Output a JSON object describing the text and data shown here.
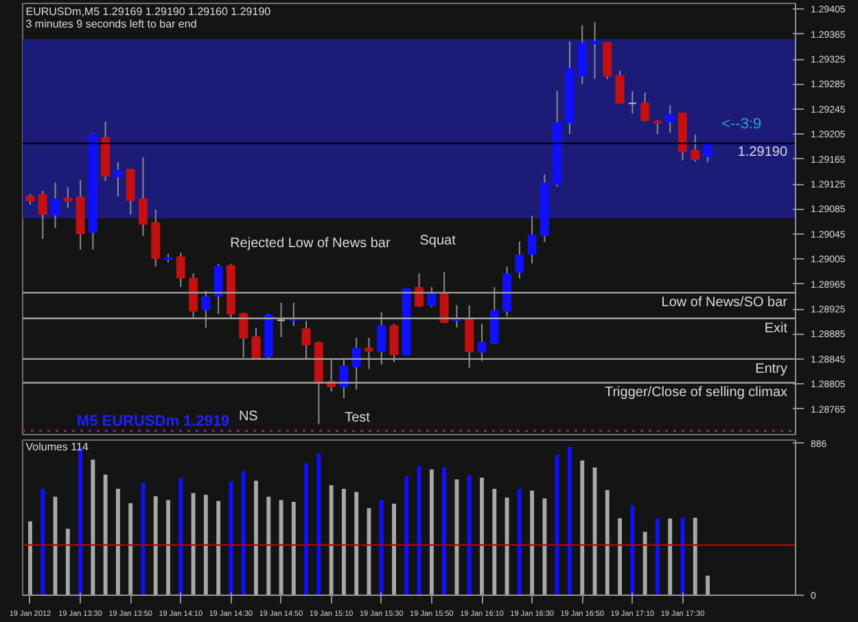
{
  "chart_data": [
    {
      "type": "candlestick",
      "title": "EURUSDm,M5  1.29169 1.29190 1.29160 1.29190",
      "subtitle": "3 minutes 9 seconds left to bar end",
      "x": [
        "2012-01-19T13:10",
        "2012-01-19T13:15",
        "2012-01-19T13:20",
        "2012-01-19T13:25",
        "2012-01-19T13:30",
        "2012-01-19T13:35",
        "2012-01-19T13:40",
        "2012-01-19T13:45",
        "2012-01-19T13:50",
        "2012-01-19T13:55",
        "2012-01-19T14:00",
        "2012-01-19T14:05",
        "2012-01-19T14:10",
        "2012-01-19T14:15",
        "2012-01-19T14:20",
        "2012-01-19T14:25",
        "2012-01-19T14:30",
        "2012-01-19T14:35",
        "2012-01-19T14:40",
        "2012-01-19T14:45",
        "2012-01-19T14:50",
        "2012-01-19T14:55",
        "2012-01-19T15:00",
        "2012-01-19T15:05",
        "2012-01-19T15:10",
        "2012-01-19T15:15",
        "2012-01-19T15:20",
        "2012-01-19T15:25",
        "2012-01-19T15:30",
        "2012-01-19T15:35",
        "2012-01-19T15:40",
        "2012-01-19T15:45",
        "2012-01-19T15:50",
        "2012-01-19T15:55",
        "2012-01-19T16:00",
        "2012-01-19T16:05",
        "2012-01-19T16:10",
        "2012-01-19T16:15",
        "2012-01-19T16:20",
        "2012-01-19T16:25",
        "2012-01-19T16:30",
        "2012-01-19T16:35",
        "2012-01-19T16:40",
        "2012-01-19T16:45",
        "2012-01-19T16:50",
        "2012-01-19T16:55",
        "2012-01-19T17:00",
        "2012-01-19T17:05",
        "2012-01-19T17:10",
        "2012-01-19T17:15",
        "2012-01-19T17:20",
        "2012-01-19T17:25",
        "2012-01-19T17:30",
        "2012-01-19T17:35",
        "2012-01-19T17:40"
      ],
      "ohlc": [
        [
          1.29105,
          1.29109,
          1.29092,
          1.29098
        ],
        [
          1.29108,
          1.29114,
          1.29037,
          1.29077
        ],
        [
          1.29076,
          1.29127,
          1.29055,
          1.29101
        ],
        [
          1.29102,
          1.2912,
          1.29087,
          1.29098
        ],
        [
          1.29104,
          1.29131,
          1.2902,
          1.29046
        ],
        [
          1.29048,
          1.29206,
          1.2902,
          1.29204
        ],
        [
          1.29199,
          1.29225,
          1.2913,
          1.29138
        ],
        [
          1.29137,
          1.2916,
          1.29105,
          1.29147
        ],
        [
          1.29148,
          1.29149,
          1.29076,
          1.29099
        ],
        [
          1.29101,
          1.29168,
          1.29042,
          1.29061
        ],
        [
          1.29063,
          1.29084,
          1.28993,
          1.29006
        ],
        [
          1.29005,
          1.29013,
          1.29,
          1.29007
        ],
        [
          1.29008,
          1.29015,
          1.2896,
          1.28975
        ],
        [
          1.28974,
          1.28982,
          1.28911,
          1.28922
        ],
        [
          1.28924,
          1.28954,
          1.28895,
          1.28944
        ],
        [
          1.28946,
          1.28997,
          1.28917,
          1.28993
        ],
        [
          1.28994,
          1.28997,
          1.28909,
          1.28917
        ],
        [
          1.28917,
          1.28919,
          1.28847,
          1.28879
        ],
        [
          1.2888,
          1.28895,
          1.28844,
          1.28846
        ],
        [
          1.28849,
          1.28917,
          1.28844,
          1.28915
        ],
        [
          1.28907,
          1.28935,
          1.2888,
          1.28907
        ],
        [
          1.28907,
          1.28935,
          1.28898,
          1.28908
        ],
        [
          1.28893,
          1.28906,
          1.28844,
          1.28868
        ],
        [
          1.28871,
          1.28873,
          1.28741,
          1.28807
        ],
        [
          1.28809,
          1.28844,
          1.28793,
          1.28801
        ],
        [
          1.28801,
          1.28844,
          1.28782,
          1.28833
        ],
        [
          1.28833,
          1.28879,
          1.28796,
          1.28862
        ],
        [
          1.28862,
          1.28879,
          1.28829,
          1.28858
        ],
        [
          1.28857,
          1.2892,
          1.28836,
          1.28898
        ],
        [
          1.28898,
          1.28901,
          1.2884,
          1.28852
        ],
        [
          1.28852,
          1.28958,
          1.28851,
          1.28957
        ],
        [
          1.28959,
          1.28982,
          1.28928,
          1.2893
        ],
        [
          1.28931,
          1.2896,
          1.28928,
          1.28949
        ],
        [
          1.28949,
          1.28984,
          1.28902,
          1.28904
        ],
        [
          1.28907,
          1.28931,
          1.28895,
          1.28908
        ],
        [
          1.28909,
          1.28931,
          1.28831,
          1.28857
        ],
        [
          1.28856,
          1.28901,
          1.28842,
          1.28871
        ],
        [
          1.28871,
          1.2896,
          1.28869,
          1.28922
        ],
        [
          1.28922,
          1.28993,
          1.28913,
          1.28981
        ],
        [
          1.28984,
          1.29033,
          1.28974,
          1.29011
        ],
        [
          1.29013,
          1.29074,
          1.28998,
          1.29043
        ],
        [
          1.29043,
          1.2914,
          1.29032,
          1.29126
        ],
        [
          1.29125,
          1.29274,
          1.29121,
          1.29223
        ],
        [
          1.29223,
          1.29353,
          1.29205,
          1.29309
        ],
        [
          1.29298,
          1.29379,
          1.29285,
          1.2935
        ],
        [
          1.2935,
          1.29384,
          1.29293,
          1.29353
        ],
        [
          1.29351,
          1.29352,
          1.29293,
          1.29298
        ],
        [
          1.29298,
          1.29306,
          1.29254,
          1.29255
        ],
        [
          1.29254,
          1.29274,
          1.29238,
          1.29254
        ],
        [
          1.29254,
          1.29271,
          1.29225,
          1.29227
        ],
        [
          1.29225,
          1.29227,
          1.29205,
          1.29223
        ],
        [
          1.29225,
          1.29251,
          1.29207,
          1.29236
        ],
        [
          1.29238,
          1.29238,
          1.29163,
          1.29177
        ],
        [
          1.29179,
          1.29204,
          1.29161,
          1.29165
        ],
        [
          1.29169,
          1.2919,
          1.2916,
          1.2919
        ]
      ],
      "colors": [
        "#c41010",
        "#c41010",
        "#1010ff",
        "#c41010",
        "#c41010",
        "#1010ff",
        "#c41010",
        "#1010ff",
        "#c41010",
        "#c41010",
        "#c41010",
        "#1010ff",
        "#c41010",
        "#c41010",
        "#1010ff",
        "#1010ff",
        "#c41010",
        "#c41010",
        "#c41010",
        "#1010ff",
        "#bbbbbb",
        "#1010ff",
        "#c41010",
        "#c41010",
        "#c41010",
        "#1010ff",
        "#1010ff",
        "#c41010",
        "#1010ff",
        "#c41010",
        "#1010ff",
        "#c41010",
        "#1010ff",
        "#c41010",
        "#1010ff",
        "#c41010",
        "#1010ff",
        "#1010ff",
        "#1010ff",
        "#1010ff",
        "#1010ff",
        "#1010ff",
        "#1010ff",
        "#1010ff",
        "#1010ff",
        "#1010ff",
        "#c41010",
        "#c41010",
        "#bbbbbb",
        "#c41010",
        "#c41010",
        "#1010ff",
        "#c41010",
        "#c41010",
        "#1010ff"
      ],
      "xlim": [
        "2012-01-19T13:07",
        "2012-01-19T18:15"
      ],
      "ylim": [
        1.28724,
        1.29414
      ],
      "yticks": [
        1.29405,
        1.29365,
        1.29325,
        1.29285,
        1.29245,
        1.29205,
        1.29165,
        1.29125,
        1.29085,
        1.29045,
        1.29005,
        1.28965,
        1.28925,
        1.28885,
        1.28845,
        1.28805,
        1.28765
      ],
      "tick_labels": "y",
      "grid": false,
      "bands": [
        {
          "axis": "y",
          "from": 1.2907,
          "to": 1.29357,
          "color": "#1c1c78"
        }
      ],
      "ref_lines": [
        {
          "axis": "y",
          "value": 1.2919,
          "label": "1.29190",
          "color": "#000000"
        },
        {
          "axis": "y",
          "value": 1.28951,
          "label": "Low of News/SO bar",
          "color": "#a0a0a0"
        },
        {
          "axis": "y",
          "value": 1.2891,
          "label": "Exit",
          "color": "#a0a0a0"
        },
        {
          "axis": "y",
          "value": 1.28845,
          "label": "Entry",
          "color": "#a0a0a0"
        },
        {
          "axis": "y",
          "value": 1.28807,
          "label": "Trigger/Close of selling climax",
          "color": "#a0a0a0"
        },
        {
          "axis": "y",
          "value": 1.2873,
          "color": "#a0208a",
          "line_style": "dotted"
        }
      ],
      "annotations": [
        "Rejected Low of News bar",
        "Squat",
        "NS",
        "Test",
        "<--3:9",
        "M5 EURUSDm 1.2919"
      ]
    },
    {
      "type": "bar",
      "title": "Volumes 114",
      "x": [
        "2012-01-19T13:10",
        "2012-01-19T13:15",
        "2012-01-19T13:20",
        "2012-01-19T13:25",
        "2012-01-19T13:30",
        "2012-01-19T13:35",
        "2012-01-19T13:40",
        "2012-01-19T13:45",
        "2012-01-19T13:50",
        "2012-01-19T13:55",
        "2012-01-19T14:00",
        "2012-01-19T14:05",
        "2012-01-19T14:10",
        "2012-01-19T14:15",
        "2012-01-19T14:20",
        "2012-01-19T14:25",
        "2012-01-19T14:30",
        "2012-01-19T14:35",
        "2012-01-19T14:40",
        "2012-01-19T14:45",
        "2012-01-19T14:50",
        "2012-01-19T14:55",
        "2012-01-19T15:00",
        "2012-01-19T15:05",
        "2012-01-19T15:10",
        "2012-01-19T15:15",
        "2012-01-19T15:20",
        "2012-01-19T15:25",
        "2012-01-19T15:30",
        "2012-01-19T15:35",
        "2012-01-19T15:40",
        "2012-01-19T15:45",
        "2012-01-19T15:50",
        "2012-01-19T15:55",
        "2012-01-19T16:00",
        "2012-01-19T16:05",
        "2012-01-19T16:10",
        "2012-01-19T16:15",
        "2012-01-19T16:20",
        "2012-01-19T16:25",
        "2012-01-19T16:30",
        "2012-01-19T16:35",
        "2012-01-19T16:40",
        "2012-01-19T16:45",
        "2012-01-19T16:50",
        "2012-01-19T16:55",
        "2012-01-19T17:00",
        "2012-01-19T17:05",
        "2012-01-19T17:10",
        "2012-01-19T17:15",
        "2012-01-19T17:20",
        "2012-01-19T17:25",
        "2012-01-19T17:30",
        "2012-01-19T17:35",
        "2012-01-19T17:40"
      ],
      "values": [
        431,
        621,
        575,
        388,
        860,
        791,
        704,
        621,
        537,
        657,
        578,
        555,
        683,
        596,
        586,
        550,
        665,
        724,
        668,
        575,
        555,
        545,
        770,
        827,
        642,
        621,
        603,
        508,
        557,
        534,
        693,
        755,
        734,
        747,
        676,
        699,
        686,
        621,
        570,
        619,
        611,
        565,
        819,
        865,
        786,
        745,
        614,
        449,
        524,
        370,
        447,
        447,
        452,
        452,
        114
      ],
      "colors": [
        "#a8a8a8",
        "#1010ff",
        "#a8a8a8",
        "#a8a8a8",
        "#1010ff",
        "#a8a8a8",
        "#a8a8a8",
        "#a8a8a8",
        "#a8a8a8",
        "#1010ff",
        "#a8a8a8",
        "#a8a8a8",
        "#1010ff",
        "#a8a8a8",
        "#a8a8a8",
        "#a8a8a8",
        "#1010ff",
        "#1010ff",
        "#a8a8a8",
        "#a8a8a8",
        "#a8a8a8",
        "#a8a8a8",
        "#1010ff",
        "#1010ff",
        "#a8a8a8",
        "#a8a8a8",
        "#a8a8a8",
        "#a8a8a8",
        "#1010ff",
        "#a8a8a8",
        "#1010ff",
        "#1010ff",
        "#a8a8a8",
        "#1010ff",
        "#a8a8a8",
        "#1010ff",
        "#a8a8a8",
        "#a8a8a8",
        "#a8a8a8",
        "#1010ff",
        "#a8a8a8",
        "#a8a8a8",
        "#1010ff",
        "#1010ff",
        "#a8a8a8",
        "#a8a8a8",
        "#a8a8a8",
        "#a8a8a8",
        "#1010ff",
        "#a8a8a8",
        "#1010ff",
        "#a8a8a8",
        "#1010ff",
        "#a8a8a8",
        "#a8a8a8"
      ],
      "xlim": [
        "2012-01-19T13:07",
        "2012-01-19T18:15"
      ],
      "ylim": [
        0,
        905
      ],
      "yticks": [
        0,
        886
      ],
      "xticks": [
        {
          "value": "2012-01-19T13:10",
          "label": "19 Jan 2012"
        },
        {
          "value": "2012-01-19T13:30",
          "label": "19 Jan 13:30"
        },
        {
          "value": "2012-01-19T13:50",
          "label": "19 Jan 13:50"
        },
        {
          "value": "2012-01-19T14:10",
          "label": "19 Jan 14:10"
        },
        {
          "value": "2012-01-19T14:30",
          "label": "19 Jan 14:30"
        },
        {
          "value": "2012-01-19T14:50",
          "label": "19 Jan 14:50"
        },
        {
          "value": "2012-01-19T15:10",
          "label": "19 Jan 15:10"
        },
        {
          "value": "2012-01-19T15:30",
          "label": "19 Jan 15:30"
        },
        {
          "value": "2012-01-19T15:50",
          "label": "19 Jan 15:50"
        },
        {
          "value": "2012-01-19T16:10",
          "label": "19 Jan 16:10"
        },
        {
          "value": "2012-01-19T16:30",
          "label": "19 Jan 16:30"
        },
        {
          "value": "2012-01-19T16:50",
          "label": "19 Jan 16:50"
        },
        {
          "value": "2012-01-19T17:10",
          "label": "19 Jan 17:10"
        },
        {
          "value": "2012-01-19T17:30",
          "label": "19 Jan 17:30"
        }
      ],
      "grid": false,
      "ref_lines": [
        {
          "axis": "y",
          "value": 293,
          "color": "#c00000"
        }
      ]
    }
  ]
}
